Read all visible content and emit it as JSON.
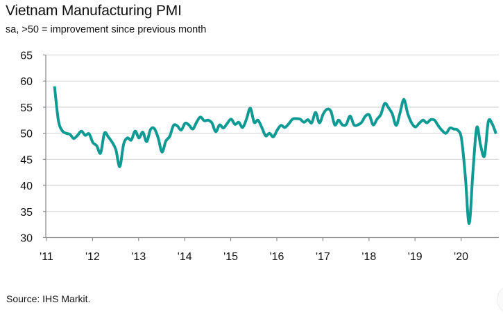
{
  "chart_data": {
    "type": "line",
    "title": "Vietnam Manufacturing PMI",
    "subtitle": "sa, >50 = improvement since previous month",
    "source": "Source: IHS Markit.",
    "xlabel": "",
    "ylabel": "",
    "ylim": [
      30,
      65
    ],
    "yticks": [
      30,
      35,
      40,
      45,
      50,
      55,
      60,
      65
    ],
    "xticks": [
      "'11",
      "'12",
      "'13",
      "'14",
      "'15",
      "'16",
      "'17",
      "'18",
      "'19",
      "'20"
    ],
    "x_start": "2011-03",
    "x_frequency": "monthly",
    "grid": "horizontal",
    "legend": "none",
    "line_color": "#0f9b94",
    "series": [
      {
        "name": "Vietnam Manufacturing PMI",
        "values": [
          59.0,
          52.5,
          50.5,
          50.0,
          49.8,
          49.0,
          49.6,
          50.4,
          49.6,
          49.9,
          48.2,
          47.6,
          46.2,
          50.0,
          49.3,
          48.3,
          46.8,
          43.6,
          47.9,
          49.1,
          48.7,
          50.4,
          49.1,
          50.2,
          48.4,
          50.7,
          50.9,
          49.1,
          46.4,
          48.5,
          49.4,
          51.5,
          51.4,
          50.6,
          51.9,
          51.6,
          50.8,
          52.1,
          53.1,
          52.4,
          52.5,
          52.0,
          50.3,
          51.6,
          51.0,
          51.9,
          52.7,
          51.7,
          52.1,
          51.1,
          52.7,
          54.8,
          52.1,
          52.5,
          51.1,
          49.5,
          50.0,
          49.3,
          50.6,
          51.5,
          51.1,
          51.8,
          52.7,
          52.8,
          52.7,
          52.1,
          52.6,
          52.0,
          54.0,
          52.0,
          53.7,
          54.6,
          54.2,
          51.6,
          52.5,
          51.6,
          51.7,
          53.3,
          51.6,
          51.6,
          52.1,
          53.3,
          53.5,
          51.6,
          52.7,
          53.6,
          55.7,
          54.9,
          53.7,
          51.5,
          53.9,
          56.5,
          53.8,
          52.0,
          51.2,
          51.9,
          52.5,
          52.0,
          52.6,
          52.5,
          51.4,
          50.5,
          50.0,
          51.0,
          50.8,
          50.6,
          49.0,
          41.9,
          32.7,
          42.7,
          51.1,
          47.6,
          45.7,
          52.2,
          51.8,
          49.9
        ]
      }
    ]
  }
}
